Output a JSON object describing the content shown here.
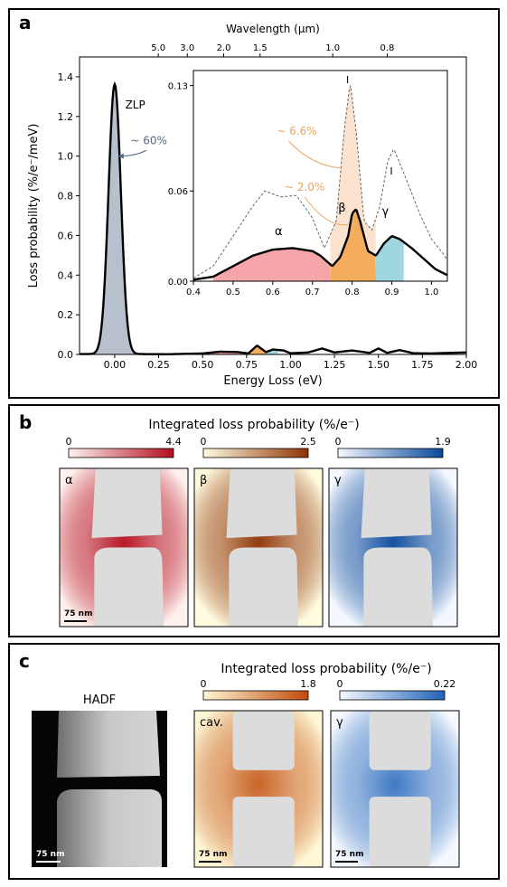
{
  "panel_a": {
    "label": "a",
    "top_axis_label": "Wavelength (μm)",
    "top_ticks": [
      {
        "label": "5.0",
        "energy": 0.248
      },
      {
        "label": "3.0",
        "energy": 0.413
      },
      {
        "label": "2.0",
        "energy": 0.62
      },
      {
        "label": "1.5",
        "energy": 0.827
      },
      {
        "label": "1.0",
        "energy": 1.24
      },
      {
        "label": "0.8",
        "energy": 1.55
      }
    ],
    "zlp_label": "ZLP",
    "zlp_percent": "~ 60%",
    "inset_percent_1": "~ 6.6%",
    "inset_percent_2": "~ 2.0%",
    "inset_tick_I_1": "I",
    "inset_tick_I_2": "I",
    "mode_alpha": "α",
    "mode_beta": "β",
    "mode_gamma": "γ"
  },
  "chart_data": [
    {
      "type": "line",
      "xlabel": "Energy Loss (eV)",
      "ylabel": "Loss probability (%/e⁻/meV)",
      "xlim": [
        -0.2,
        2.0
      ],
      "ylim": [
        0,
        1.5
      ],
      "xticks": [
        "0.00",
        "0.25",
        "0.50",
        "0.75",
        "1.00",
        "1.25",
        "1.50",
        "1.75",
        "2.00"
      ],
      "yticks": [
        "0.0",
        "0.2",
        "0.4",
        "0.6",
        "0.8",
        "1.0",
        "1.2",
        "1.4"
      ],
      "zlp": {
        "center": 0.0,
        "peak": 1.36,
        "width": 0.035
      },
      "tail_points": [
        [
          0.1,
          0.002
        ],
        [
          0.3,
          0.001
        ],
        [
          0.5,
          0.005
        ],
        [
          0.6,
          0.014
        ],
        [
          0.7,
          0.012
        ],
        [
          0.76,
          0.005
        ],
        [
          0.81,
          0.045
        ],
        [
          0.86,
          0.012
        ],
        [
          0.9,
          0.025
        ],
        [
          0.96,
          0.02
        ],
        [
          1.0,
          0.006
        ],
        [
          1.1,
          0.01
        ],
        [
          1.18,
          0.03
        ],
        [
          1.25,
          0.01
        ],
        [
          1.35,
          0.02
        ],
        [
          1.45,
          0.008
        ],
        [
          1.5,
          0.03
        ],
        [
          1.55,
          0.008
        ],
        [
          1.62,
          0.022
        ],
        [
          1.7,
          0.006
        ],
        [
          1.8,
          0.005
        ],
        [
          1.9,
          0.008
        ],
        [
          2.0,
          0.01
        ]
      ]
    },
    {
      "type": "area",
      "xlim": [
        0.4,
        1.04
      ],
      "ylim": [
        0,
        0.14
      ],
      "xticks": [
        "0.4",
        "0.5",
        "0.6",
        "0.7",
        "0.8",
        "0.9",
        "1.0"
      ],
      "yticks": [
        "0.00",
        "0.06",
        "0.13"
      ],
      "ytick_values": [
        0.0,
        0.06,
        0.13
      ],
      "measured": [
        [
          0.4,
          0.001
        ],
        [
          0.45,
          0.003
        ],
        [
          0.5,
          0.01
        ],
        [
          0.55,
          0.017
        ],
        [
          0.6,
          0.021
        ],
        [
          0.65,
          0.022
        ],
        [
          0.7,
          0.02
        ],
        [
          0.72,
          0.017
        ],
        [
          0.75,
          0.01
        ],
        [
          0.77,
          0.016
        ],
        [
          0.79,
          0.03
        ],
        [
          0.8,
          0.045
        ],
        [
          0.81,
          0.048
        ],
        [
          0.82,
          0.04
        ],
        [
          0.84,
          0.02
        ],
        [
          0.86,
          0.017
        ],
        [
          0.88,
          0.025
        ],
        [
          0.9,
          0.03
        ],
        [
          0.92,
          0.028
        ],
        [
          0.95,
          0.022
        ],
        [
          0.98,
          0.015
        ],
        [
          1.01,
          0.008
        ],
        [
          1.04,
          0.004
        ]
      ],
      "simulated": [
        [
          0.4,
          0.002
        ],
        [
          0.45,
          0.01
        ],
        [
          0.5,
          0.03
        ],
        [
          0.55,
          0.05
        ],
        [
          0.58,
          0.06
        ],
        [
          0.62,
          0.056
        ],
        [
          0.66,
          0.057
        ],
        [
          0.7,
          0.042
        ],
        [
          0.73,
          0.022
        ],
        [
          0.76,
          0.04
        ],
        [
          0.78,
          0.1
        ],
        [
          0.795,
          0.132
        ],
        [
          0.81,
          0.1
        ],
        [
          0.83,
          0.04
        ],
        [
          0.85,
          0.034
        ],
        [
          0.87,
          0.05
        ],
        [
          0.89,
          0.08
        ],
        [
          0.905,
          0.088
        ],
        [
          0.93,
          0.072
        ],
        [
          0.97,
          0.045
        ],
        [
          1.0,
          0.028
        ],
        [
          1.03,
          0.018
        ],
        [
          1.04,
          0.014
        ]
      ],
      "bands": [
        {
          "name": "α",
          "from": 0.45,
          "to": 0.745,
          "color": "#f5a5a8"
        },
        {
          "name": "β",
          "from": 0.745,
          "to": 0.86,
          "color": "#f4ad5c"
        },
        {
          "name": "γ",
          "from": 0.86,
          "to": 0.93,
          "color": "#9fd7e0"
        }
      ],
      "overlay_peak": {
        "from": 0.745,
        "to": 0.86,
        "color": "#fbe3d0"
      }
    }
  ],
  "panel_b": {
    "label": "b",
    "title": "Integrated loss probability (%/e⁻)",
    "maps": [
      {
        "symbol": "α",
        "cmin": "0",
        "cmax": "4.4",
        "c0": "#fff1ee",
        "c1": "#b30d1c",
        "scale": "75 nm"
      },
      {
        "symbol": "β",
        "cmin": "0",
        "cmax": "2.5",
        "c0": "#fffbe0",
        "c1": "#8e3205",
        "scale": ""
      },
      {
        "symbol": "γ",
        "cmin": "0",
        "cmax": "1.9",
        "c0": "#f5f9ff",
        "c1": "#08479a",
        "scale": ""
      }
    ]
  },
  "panel_c": {
    "label": "c",
    "title": "Integrated loss probability (%/e⁻)",
    "hadf_title": "HADF",
    "hadf_scale": "75 nm",
    "maps": [
      {
        "symbol": "cav.",
        "cmin": "0",
        "cmax": "1.8",
        "c0": "#fff7d6",
        "c1": "#c04a0a",
        "scale": "75 nm"
      },
      {
        "symbol": "γ",
        "cmin": "0",
        "cmax": "0.22",
        "c0": "#f5f9ff",
        "c1": "#1f63b8",
        "scale": "75 nm"
      }
    ]
  }
}
